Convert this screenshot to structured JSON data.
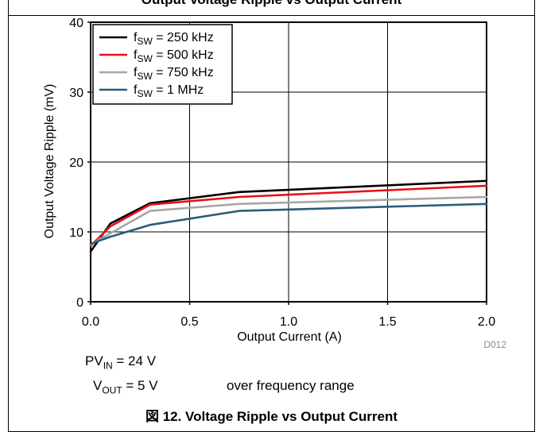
{
  "header": {
    "title": "Output Voltage Ripple vs Output Current"
  },
  "figure_code": "D012",
  "conditions": {
    "pvin_main": "PV",
    "pvin_sub": "IN",
    "pvin_value": " = 24 V",
    "vout_main": "V",
    "vout_sub": "OUT",
    "vout_value": " = 5 V",
    "note": "over frequency range"
  },
  "caption": "図 12. Voltage Ripple vs Output Current",
  "chart_data": {
    "type": "line",
    "title": "",
    "xlabel": "Output Current (A)",
    "ylabel": "Output Voltage Ripple (mV)",
    "xlim": [
      0,
      2
    ],
    "ylim": [
      0,
      40
    ],
    "x_ticks": [
      "0.0",
      "0.5",
      "1.0",
      "1.5",
      "2.0"
    ],
    "y_ticks": [
      "0",
      "10",
      "20",
      "30",
      "40"
    ],
    "grid": true,
    "legend_position": "top-left",
    "series": [
      {
        "name_main": "f",
        "name_sub": "SW",
        "name_value": " = 250 kHz",
        "color": "#000000",
        "x": [
          0,
          0.1,
          0.3,
          0.75,
          2.0
        ],
        "y": [
          7.2,
          11.2,
          14.1,
          15.7,
          17.3
        ]
      },
      {
        "name_main": "f",
        "name_sub": "SW",
        "name_value": " = 500 kHz",
        "color": "#e8101a",
        "x": [
          0,
          0.1,
          0.3,
          0.75,
          2.0
        ],
        "y": [
          8.0,
          10.8,
          13.9,
          15.0,
          16.6
        ]
      },
      {
        "name_main": "f",
        "name_sub": "SW",
        "name_value": " = 750 kHz",
        "color": "#a6a6a6",
        "x": [
          0,
          0.1,
          0.3,
          0.75,
          2.0
        ],
        "y": [
          8.2,
          9.8,
          13.0,
          14.0,
          15.0
        ]
      },
      {
        "name_main": "f",
        "name_sub": "SW",
        "name_value": " = 1 MHz",
        "color": "#2b5c7a",
        "x": [
          0,
          0.1,
          0.3,
          0.75,
          2.0
        ],
        "y": [
          8.3,
          9.3,
          11.0,
          13.0,
          14.0
        ]
      }
    ]
  }
}
